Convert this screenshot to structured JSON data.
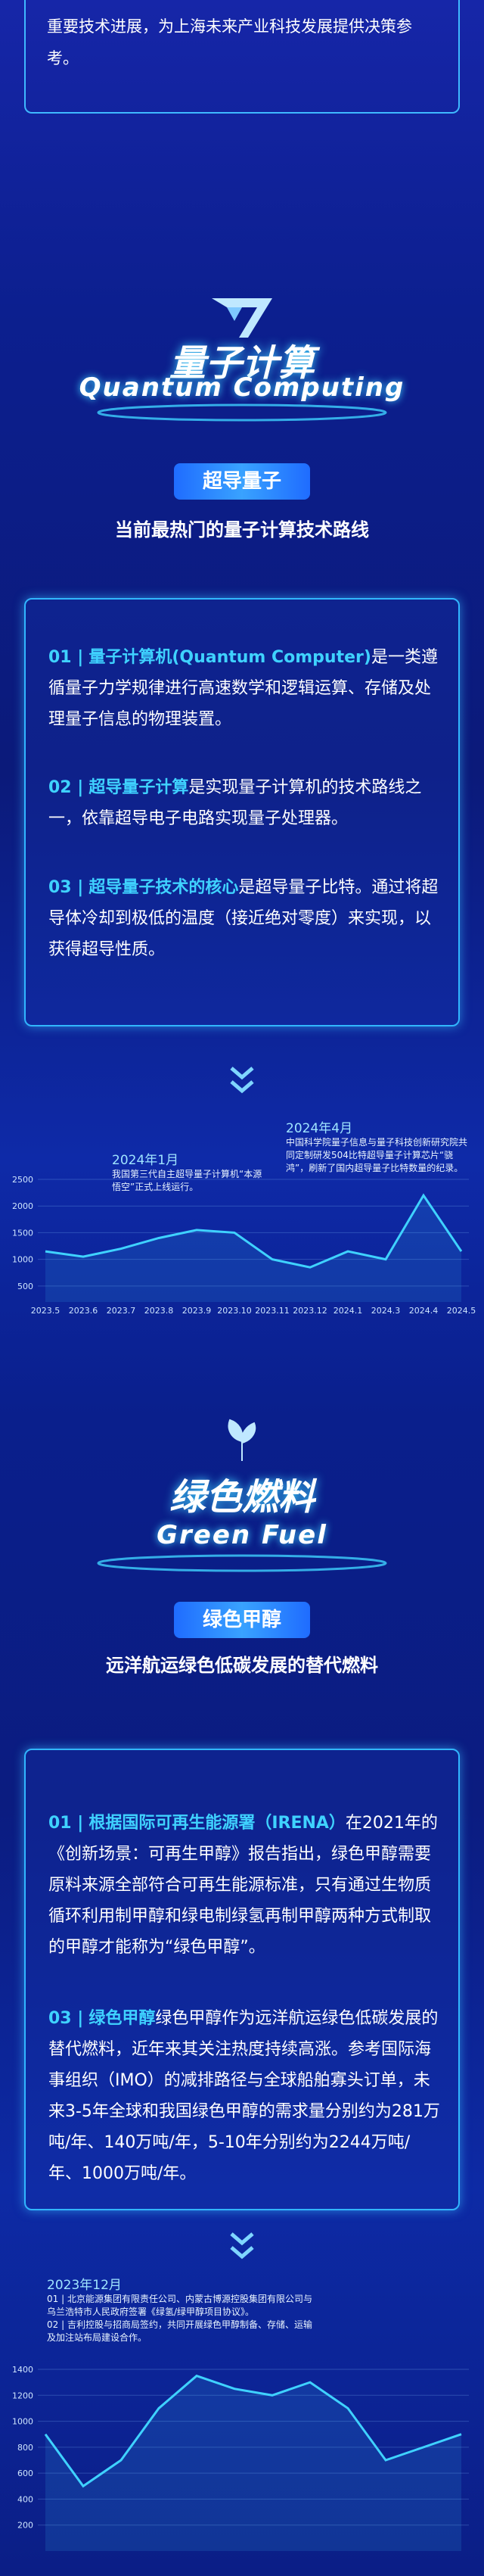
{
  "intro": {
    "text": "重要技术进展，为上海未来产业科技发展提供决策参考。"
  },
  "sections": [
    {
      "title_cn": "量子计算",
      "title_en": "Quantum Computing",
      "badge": "超导量子",
      "subtitle": "当前最热门的量子计算技术路线",
      "items": [
        {
          "num": "01 |",
          "highlight": "量子计算机(Quantum Computer)",
          "text": "是一类遵循量子力学规律进行高速数学和逻辑运算、存储及处理量子信息的物理装置。"
        },
        {
          "num": "02 |",
          "highlight": "超导量子计算",
          "text": "是实现量子计算机的技术路线之一，依靠超导电子电路实现量子处理器。"
        },
        {
          "num": "03 |",
          "highlight": "超导量子技术的核心",
          "text": "是超导量子比特。通过将超导体冷却到极低的温度（接近绝对零度）来实现，以获得超导性质。"
        }
      ]
    },
    {
      "title_cn": "绿色燃料",
      "title_en": "Green Fuel",
      "badge": "绿色甲醇",
      "subtitle": "远洋航运绿色低碳发展的替代燃料",
      "items": [
        {
          "num": "01 |",
          "highlight": "根据国际可再生能源署（IRENA）",
          "text": "在2021年的《创新场景：可再生甲醇》报告指出，绿色甲醇需要原料来源全部符合可再生能源标准，只有通过生物质循环利用制甲醇和绿电制绿氢再制甲醇两种方式制取的甲醇才能称为“绿色甲醇”。"
        },
        {
          "num": "03 |",
          "highlight": "绿色甲醇",
          "text": "绿色甲醇作为远洋航运绿色低碳发展的替代燃料，近年来其关注热度持续高涨。参考国际海事组织（IMO）的减排路径与全球船舶寡头订单，未来3-5年全球和我国绿色甲醇的需求量分别约为281万吨/年、140万吨/年，5-10年分别约为2244万吨/年、1000万吨/年。"
        }
      ]
    }
  ],
  "chart_data": [
    {
      "type": "line",
      "categories": [
        "2023.5",
        "2023.6",
        "2023.7",
        "2023.8",
        "2023.9",
        "2023.10",
        "2023.11",
        "2023.12",
        "2024.1",
        "2024.3",
        "2024.4",
        "2024.5"
      ],
      "values": [
        1150,
        1050,
        1200,
        1400,
        1550,
        1500,
        1000,
        850,
        1150,
        1000,
        2200,
        1150
      ],
      "color": "#3fd2ff",
      "ylim": [
        200,
        2500
      ],
      "yticks": [
        500,
        1000,
        1500,
        2000,
        2500
      ],
      "grid": true,
      "annotations": [
        {
          "date": "2024年1月",
          "text": "我国第三代自主超导量子计算机“本源悟空”正式上线运行。"
        },
        {
          "date": "2024年4月",
          "text": "中国科学院量子信息与量子科技创新研究院共同定制研发504比特超导量子计算芯片“骁鸿”，刷新了国内超导量子比特数量的纪录。"
        }
      ]
    },
    {
      "type": "line",
      "categories": [
        null,
        null,
        null,
        null,
        null,
        null,
        null,
        null,
        null,
        null,
        null,
        null
      ],
      "values": [
        900,
        500,
        700,
        1100,
        1350,
        1250,
        1200,
        1300,
        1100,
        700,
        800,
        900
      ],
      "color": "#3fd2ff",
      "ylim": [
        0,
        1400
      ],
      "yticks": [
        200,
        400,
        600,
        800,
        1000,
        1200,
        1400
      ],
      "grid": true,
      "annotations": [
        {
          "date": "2023年12月",
          "notes": [
            "01 | 北京能源集团有限责任公司、内蒙古博源控股集团有限公司与乌兰浩特市人民政府签署《绿氢/绿甲醇项目协议》。",
            "02 | 吉利控股与招商局签约，共同开展绿色甲醇制备、存储、运输及加注站布局建设合作。"
          ]
        }
      ]
    }
  ]
}
